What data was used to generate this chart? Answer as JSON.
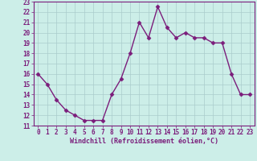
{
  "x": [
    0,
    1,
    2,
    3,
    4,
    5,
    6,
    7,
    8,
    9,
    10,
    11,
    12,
    13,
    14,
    15,
    16,
    17,
    18,
    19,
    20,
    21,
    22,
    23
  ],
  "y": [
    16,
    15,
    13.5,
    12.5,
    12,
    11.5,
    11.5,
    11.5,
    14,
    15.5,
    18,
    21,
    19.5,
    22.5,
    20.5,
    19.5,
    20,
    19.5,
    19.5,
    19,
    19,
    16,
    14,
    14
  ],
  "line_color": "#7B1D7B",
  "marker": "D",
  "marker_size": 2.5,
  "bg_color": "#cceee8",
  "grid_color": "#aacccc",
  "xlabel": "Windchill (Refroidissement éolien,°C)",
  "xlabel_color": "#7B1D7B",
  "tick_color": "#7B1D7B",
  "spine_color": "#7B1D7B",
  "ylim": [
    11,
    23
  ],
  "xlim": [
    -0.5,
    23.5
  ],
  "yticks": [
    11,
    12,
    13,
    14,
    15,
    16,
    17,
    18,
    19,
    20,
    21,
    22,
    23
  ],
  "xticks": [
    0,
    1,
    2,
    3,
    4,
    5,
    6,
    7,
    8,
    9,
    10,
    11,
    12,
    13,
    14,
    15,
    16,
    17,
    18,
    19,
    20,
    21,
    22,
    23
  ],
  "tick_fontsize": 5.5,
  "xlabel_fontsize": 6,
  "linewidth": 1.0
}
